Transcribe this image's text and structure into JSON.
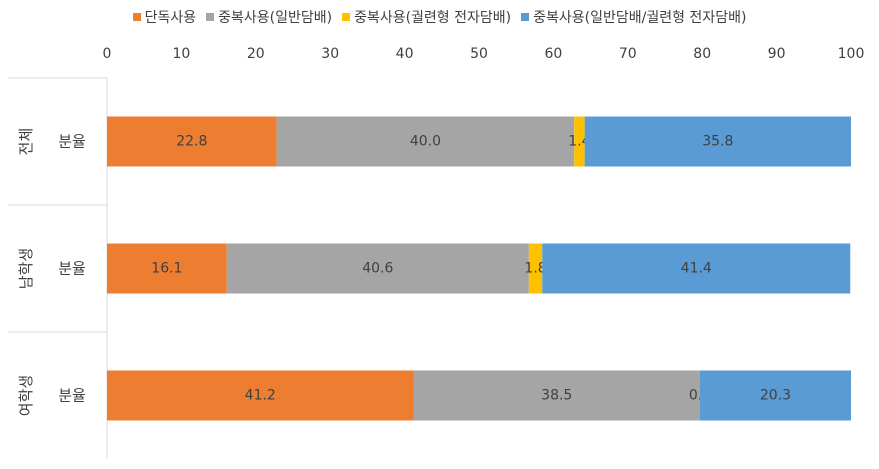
{
  "chart_data": {
    "type": "bar",
    "orientation": "horizontal",
    "stacked": true,
    "xlim": [
      0,
      100
    ],
    "x_ticks": [
      0,
      10,
      20,
      30,
      40,
      50,
      60,
      70,
      80,
      90,
      100
    ],
    "x_axis_position": "top",
    "grid": false,
    "legend_position": "top",
    "groups": [
      "전체",
      "남학생",
      "여학생"
    ],
    "categories": [
      "분율",
      "분율",
      "분율"
    ],
    "series": [
      {
        "name": "단독사용",
        "color": "#ED7D31",
        "values": [
          22.8,
          16.1,
          41.2
        ]
      },
      {
        "name": "중복사용(일반담배)",
        "color": "#A5A5A5",
        "values": [
          40.0,
          40.6,
          38.5
        ]
      },
      {
        "name": "중복사용(궐련형 전자담배)",
        "color": "#FFC000",
        "values": [
          1.4,
          1.8,
          0.0
        ]
      },
      {
        "name": "중복사용(일반담배/궐련형 전자담배)",
        "color": "#5B9BD5",
        "values": [
          35.8,
          41.4,
          20.3
        ]
      }
    ],
    "data_labels": [
      [
        "22.8",
        "40.0",
        "1.4",
        "35.8"
      ],
      [
        "16.1",
        "40.6",
        "1.8",
        "41.4"
      ],
      [
        "41.2",
        "38.5",
        "0.0",
        "20.3"
      ]
    ]
  }
}
